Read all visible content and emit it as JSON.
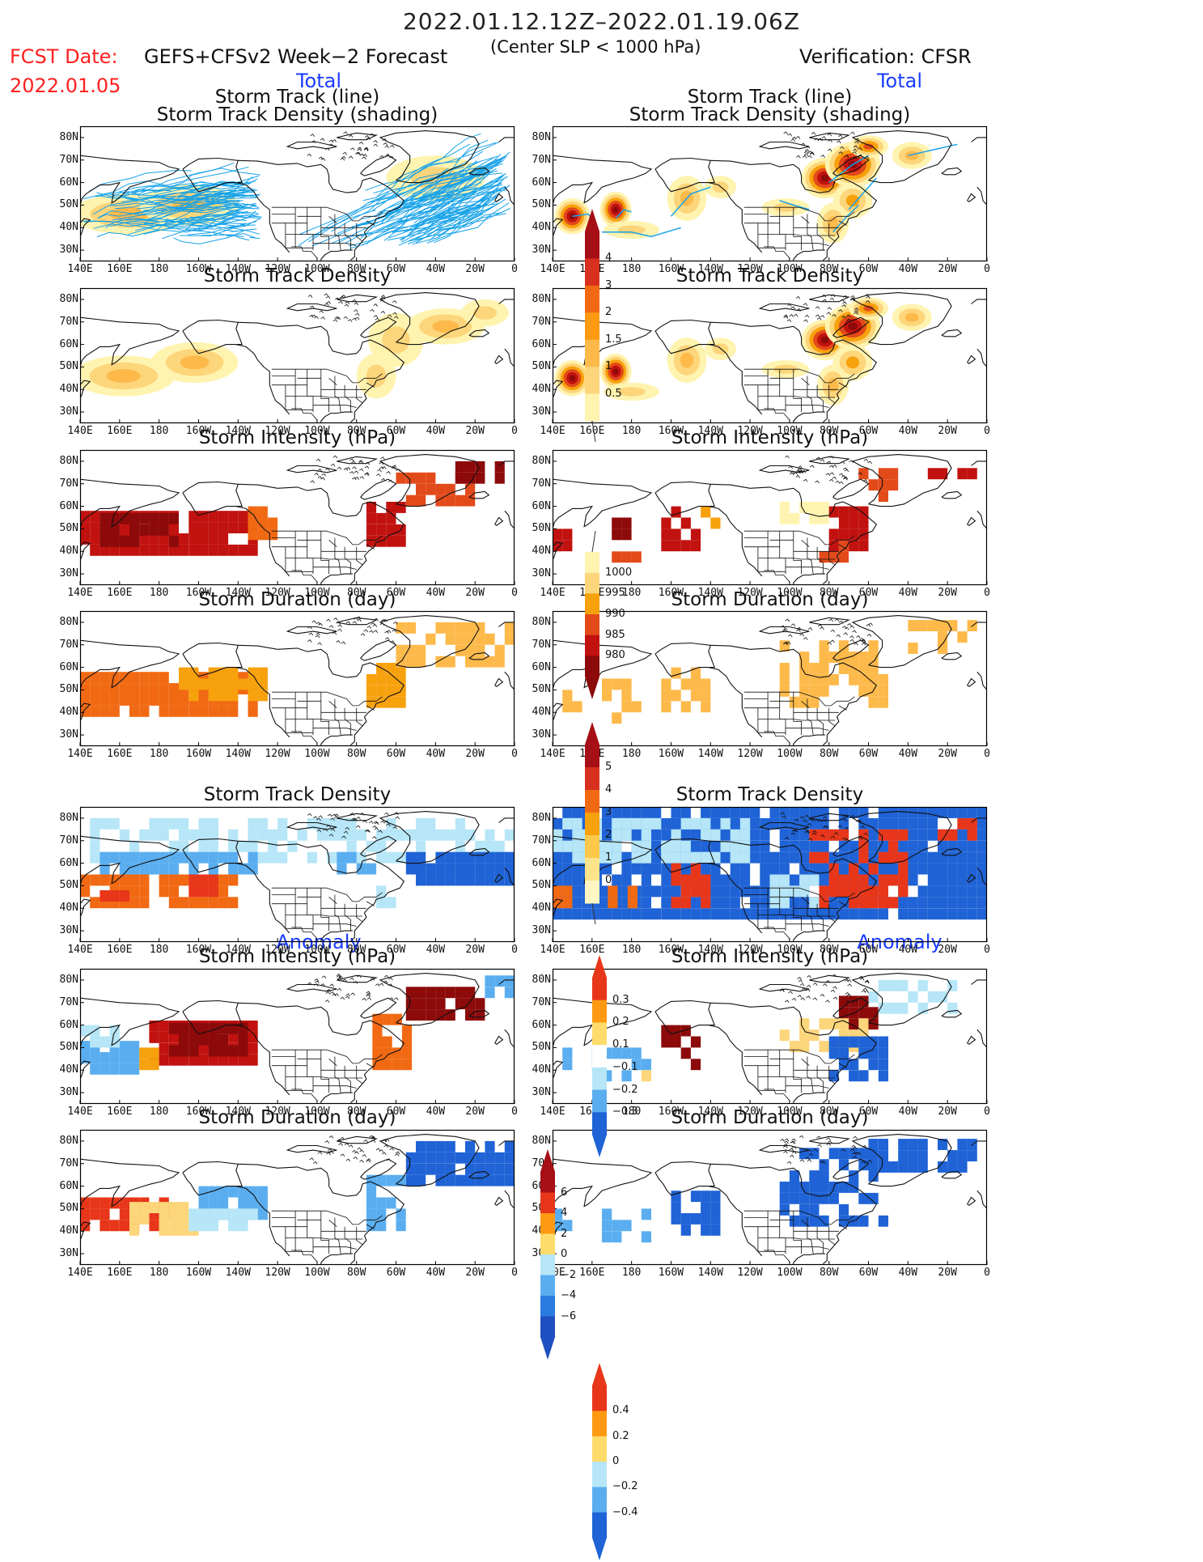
{
  "header": {
    "period": "2022.01.12.12Z–2022.01.19.06Z",
    "fcst_label": "FCST Date:",
    "model": "GEFS+CFSv2 Week−2 Forecast",
    "slp_note": "(Center SLP < 1000 hPa)",
    "verification": "Verification: CFSR",
    "fcst_date": "2022.01.05"
  },
  "sections": {
    "total": "Total",
    "anomaly": "Anomaly"
  },
  "titles": {
    "track_line": "Storm Track (line)",
    "track_shading": "Storm Track Density (shading)",
    "density": "Storm Track Density",
    "intensity": "Storm Intensity (hPa)",
    "duration": "Storm Duration (day)"
  },
  "axes": {
    "lon_labels": [
      "140E",
      "160E",
      "180",
      "160W",
      "140W",
      "120W",
      "100W",
      "80W",
      "60W",
      "40W",
      "20W",
      "0"
    ],
    "lat_labels": [
      "80N",
      "70N",
      "60N",
      "50N",
      "40N",
      "30N"
    ]
  },
  "colorbars": {
    "density": {
      "labels": [
        "4",
        "3",
        "2",
        "1.5",
        "1",
        "0.5"
      ],
      "colors": [
        "#a50f15",
        "#d7301f",
        "#f16913",
        "#fd9a12",
        "#fdb94a",
        "#fdd57a",
        "#fff3b0"
      ]
    },
    "intensity": {
      "labels": [
        "1000",
        "995",
        "990",
        "985",
        "980"
      ],
      "colors": [
        "#fff3b0",
        "#fdd57a",
        "#f7a10d",
        "#e34a1a",
        "#c1120f",
        "#8c0a0a"
      ]
    },
    "duration": {
      "labels": [
        "5",
        "4",
        "3",
        "2",
        "1",
        "0"
      ],
      "colors": [
        "#a50f15",
        "#d7301f",
        "#f16913",
        "#f7a10d",
        "#fdc84a",
        "#fde38a",
        "#fff6c2"
      ]
    },
    "anom_density": {
      "labels": [
        "0.3",
        "0.2",
        "0.1",
        "−0.1",
        "−0.2",
        "−0.3"
      ],
      "colors": [
        "#e8361a",
        "#fd9a12",
        "#fddc6b",
        "#ffffff",
        "#b6e6f7",
        "#5aaef0",
        "#1f63d6"
      ]
    },
    "anom_intensity": {
      "labels": [
        "6",
        "4",
        "2",
        "0",
        "−2",
        "−4",
        "−6"
      ],
      "colors": [
        "#a50f15",
        "#e8361a",
        "#fd9a12",
        "#fddc6b",
        "#b6e6f7",
        "#5aaef0",
        "#2a7ae0",
        "#1f4fc0"
      ]
    },
    "anom_duration": {
      "labels": [
        "0.4",
        "0.2",
        "0",
        "−0.2",
        "−0.4"
      ],
      "colors": [
        "#e8361a",
        "#fd9a12",
        "#fddc6b",
        "#b6e6f7",
        "#5aaef0",
        "#1f63d6"
      ]
    }
  },
  "palette": {
    "track_line": "#17a2e8",
    "coast": "#111111",
    "frame": "#000000"
  }
}
